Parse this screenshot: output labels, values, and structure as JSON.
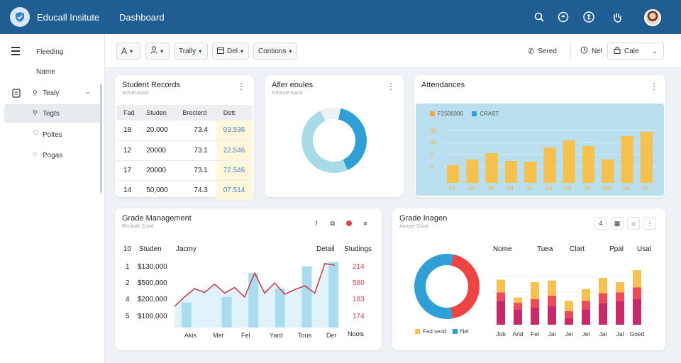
{
  "header": {
    "brand": "Educall Insitute",
    "page_title": "Dashboard"
  },
  "icons": {
    "logo": "shield-check-icon",
    "search": "search-icon",
    "chat": "chat-icon",
    "info": "info-icon",
    "hand": "hand-icon",
    "profile": "avatar-photo"
  },
  "sidebar": {
    "items": [
      {
        "label": "Fleeding",
        "icon": "menu-icon"
      },
      {
        "label": "Name",
        "icon": ""
      },
      {
        "label": "Tealy",
        "icon": "clipboard-icon"
      },
      {
        "label": "Tegts",
        "icon": "pin-icon"
      },
      {
        "label": "Poltes",
        "icon": "heart-icon"
      },
      {
        "label": "Pogas",
        "icon": "chat-bubble-icon"
      }
    ]
  },
  "toolbar": {
    "btn_font": "A",
    "btn_user": "",
    "btn_trally": "Trally",
    "btn_del": "Del",
    "btn_contions": "Contions",
    "right_saved": "Sered",
    "right_nel": "Nel",
    "select_value": "Cale"
  },
  "student_records": {
    "title": "Student Records",
    "subtitle": "Sctsel Aood",
    "columns": [
      "Fad",
      "Studen",
      "Brecterd",
      "Dett"
    ],
    "rows": [
      [
        "18",
        "20,000",
        "73.4",
        "03.536"
      ],
      [
        "12",
        "20000",
        "73.1",
        "22.546"
      ],
      [
        "17",
        "20000",
        "73.1",
        "72.546"
      ],
      [
        "14",
        "50,000",
        "74.3",
        "07.514"
      ]
    ]
  },
  "after_school": {
    "title": "Afler eoules",
    "subtitle": "Grhoole Isacd"
  },
  "attendances": {
    "title": "Attendances",
    "legend": [
      "F2500390",
      "CRAST"
    ],
    "yticks": [
      "00",
      "00",
      "0",
      "0"
    ]
  },
  "grade_management": {
    "title": "Grade Management",
    "subtitle": "Reclude Cood",
    "col_num": "10",
    "col_student": "Studen",
    "col_jacmy": "Jacmy",
    "col_detail": "Detail",
    "col_studings": "Studings",
    "rows": [
      {
        "num": "1",
        "amount": "$130,000",
        "value": "214"
      },
      {
        "num": "2",
        "amount": "$500,000",
        "value": "580"
      },
      {
        "num": "4",
        "amount": "$200,000",
        "value": "183"
      },
      {
        "num": "5",
        "amount": "$100,000",
        "value": "174"
      }
    ]
  },
  "grade_images": {
    "title": "Grade Inagen",
    "subtitle": "Aroose Cood",
    "toolbar": [
      "4",
      "",
      "",
      ""
    ],
    "columns": [
      "Nome",
      "Tuea",
      "Clart",
      "Ppal",
      "Usal"
    ],
    "legend": [
      "Fad seod",
      "Nel"
    ]
  },
  "chart_data": [
    {
      "type": "bar",
      "title": "Attendances",
      "categories": [
        "10",
        "Jal",
        "Jal",
        "Tal",
        "Ja",
        "Jal",
        "Jal",
        "Jdl",
        "300",
        "Jal",
        "10"
      ],
      "values": [
        25,
        33,
        42,
        31,
        30,
        50,
        60,
        52,
        33,
        66,
        72
      ],
      "ylim": [
        0,
        90
      ],
      "grid": true,
      "legend_position": "top-left",
      "colors": [
        "#f6c14f"
      ]
    },
    {
      "type": "pie",
      "title": "Afler eoules",
      "slices": [
        {
          "label": "",
          "value": 40,
          "color": "#2f9fd6"
        },
        {
          "label": "",
          "value": 50,
          "color": "#a7dbe6"
        },
        {
          "label": "",
          "value": 10,
          "color": "#eef2f5"
        }
      ]
    },
    {
      "type": "area",
      "title": "Grade Management",
      "categories": [
        "Akis",
        "Mer",
        "Fel",
        "Yard",
        "Tous",
        "Der"
      ],
      "line": [
        38,
        55,
        70,
        63,
        78,
        62,
        72,
        55,
        98,
        62,
        80,
        60,
        68,
        75,
        62,
        115,
        112
      ],
      "bars": [
        45,
        0,
        0,
        55,
        0,
        98,
        0,
        70,
        0,
        110,
        0,
        118
      ],
      "ylim": [
        0,
        130
      ],
      "colors": [
        "#c9414f",
        "#a9dcef"
      ]
    },
    {
      "type": "pie",
      "title": "Grade Inagen",
      "slices": [
        {
          "label": "Fad seod",
          "value": 44,
          "color": "#ee4444"
        },
        {
          "label": "Nel",
          "value": 56,
          "color": "#2f9fd6"
        }
      ]
    },
    {
      "type": "bar",
      "title": "Grade Inagen stacked",
      "categories": [
        "Job",
        "Arld",
        "Fel",
        "Jal",
        "Jel",
        "Jel",
        "Jal",
        "Jal",
        "Goed"
      ],
      "series": [
        {
          "name": "",
          "values": [
            28,
            18,
            20,
            22,
            8,
            18,
            25,
            28,
            30
          ],
          "color": "#c7296a"
        },
        {
          "name": "",
          "values": [
            10,
            8,
            10,
            12,
            8,
            10,
            12,
            10,
            14
          ],
          "color": "#ef4a58"
        },
        {
          "name": "",
          "values": [
            15,
            6,
            20,
            18,
            12,
            14,
            18,
            12,
            20
          ],
          "color": "#f6c14f"
        }
      ],
      "ylim": [
        0,
        80
      ]
    }
  ]
}
